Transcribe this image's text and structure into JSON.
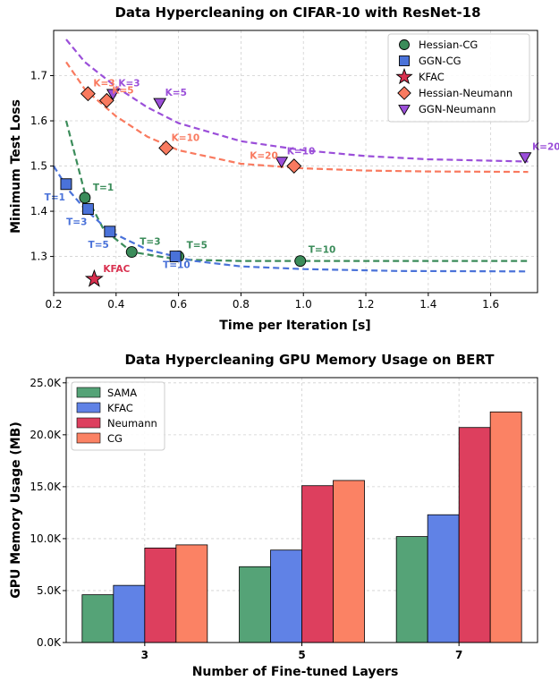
{
  "chart_data": [
    {
      "type": "scatter",
      "title": "Data Hypercleaning on CIFAR-10 with ResNet-18",
      "xlabel": "Time per Iteration [s]",
      "ylabel": "Minimum Test Loss",
      "xlim": [
        0.2,
        1.75
      ],
      "ylim": [
        1.22,
        1.8
      ],
      "xticks": [
        "0.2",
        "0.4",
        "0.6",
        "0.8",
        "1.0",
        "1.2",
        "1.4",
        "1.6"
      ],
      "yticks": [
        "1.3",
        "1.4",
        "1.5",
        "1.6",
        "1.7"
      ],
      "grid": true,
      "legend_position": "top-right",
      "series": [
        {
          "name": "Hessian-CG",
          "marker": "circle",
          "color": "#3b8c5a",
          "points": [
            {
              "x": 0.3,
              "y": 1.43,
              "label": "T=1"
            },
            {
              "x": 0.45,
              "y": 1.31,
              "label": "T=3"
            },
            {
              "x": 0.6,
              "y": 1.3,
              "label": "T=5"
            },
            {
              "x": 0.99,
              "y": 1.29,
              "label": "T=10"
            }
          ],
          "fit_curve": {
            "x": [
              0.24,
              0.3,
              0.36,
              0.45,
              0.6,
              0.8,
              1.0,
              1.3,
              1.72
            ],
            "y": [
              1.6,
              1.44,
              1.36,
              1.31,
              1.293,
              1.29,
              1.29,
              1.29,
              1.29
            ]
          }
        },
        {
          "name": "GGN-CG",
          "marker": "square",
          "color": "#4a72d9",
          "points": [
            {
              "x": 0.24,
              "y": 1.46,
              "label": "T=1"
            },
            {
              "x": 0.31,
              "y": 1.405,
              "label": "T=3"
            },
            {
              "x": 0.38,
              "y": 1.355,
              "label": "T=5"
            },
            {
              "x": 0.59,
              "y": 1.3,
              "label": "T=10"
            }
          ],
          "fit_curve": {
            "x": [
              0.2,
              0.25,
              0.3,
              0.38,
              0.5,
              0.65,
              0.8,
              1.0,
              1.3,
              1.72
            ],
            "y": [
              1.5,
              1.445,
              1.405,
              1.355,
              1.315,
              1.29,
              1.278,
              1.272,
              1.268,
              1.267
            ]
          }
        },
        {
          "name": "KFAC",
          "marker": "star",
          "color": "#d9304f",
          "points": [
            {
              "x": 0.33,
              "y": 1.25,
              "label": "KFAC"
            }
          ]
        },
        {
          "name": "Hessian-Neumann",
          "marker": "diamond",
          "color": "#f97a5f",
          "points": [
            {
              "x": 0.31,
              "y": 1.66,
              "label": "K=3"
            },
            {
              "x": 0.37,
              "y": 1.645,
              "label": "K=5"
            },
            {
              "x": 0.56,
              "y": 1.54,
              "label": "K=10"
            },
            {
              "x": 0.97,
              "y": 1.5,
              "label": "K=20"
            }
          ],
          "fit_curve": {
            "x": [
              0.24,
              0.3,
              0.4,
              0.5,
              0.6,
              0.8,
              1.0,
              1.2,
              1.4,
              1.72
            ],
            "y": [
              1.73,
              1.67,
              1.61,
              1.565,
              1.535,
              1.505,
              1.495,
              1.49,
              1.488,
              1.487
            ]
          }
        },
        {
          "name": "GGN-Neumann",
          "marker": "triangle-down",
          "color": "#9b4fd9",
          "points": [
            {
              "x": 0.39,
              "y": 1.66,
              "label": "K=3"
            },
            {
              "x": 0.54,
              "y": 1.64,
              "label": "K=5"
            },
            {
              "x": 0.93,
              "y": 1.51,
              "label": "K=10"
            },
            {
              "x": 1.71,
              "y": 1.52,
              "label": "K=20"
            }
          ],
          "fit_curve": {
            "x": [
              0.24,
              0.3,
              0.4,
              0.5,
              0.6,
              0.8,
              1.0,
              1.2,
              1.4,
              1.72
            ],
            "y": [
              1.78,
              1.73,
              1.675,
              1.63,
              1.595,
              1.555,
              1.535,
              1.522,
              1.515,
              1.51
            ]
          }
        }
      ]
    },
    {
      "type": "bar",
      "title": "Data Hypercleaning GPU Memory Usage on BERT",
      "xlabel": "Number of Fine-tuned Layers",
      "ylabel": "GPU Memory Usage (MB)",
      "categories": [
        "3",
        "5",
        "7"
      ],
      "ylim": [
        0,
        25500
      ],
      "yticks": [
        "0.0K",
        "5.0K",
        "10.0K",
        "15.0K",
        "20.0K",
        "25.0K"
      ],
      "grid": true,
      "legend_position": "top-left",
      "series": [
        {
          "name": "SAMA",
          "color": "#55a377",
          "values": [
            4600,
            7300,
            10200
          ]
        },
        {
          "name": "KFAC",
          "color": "#6082e6",
          "values": [
            5500,
            8900,
            12300
          ]
        },
        {
          "name": "Neumann",
          "color": "#dd3f5e",
          "values": [
            9100,
            15100,
            20700
          ]
        },
        {
          "name": "CG",
          "color": "#fb8264",
          "values": [
            9400,
            15600,
            22200
          ]
        }
      ]
    }
  ]
}
